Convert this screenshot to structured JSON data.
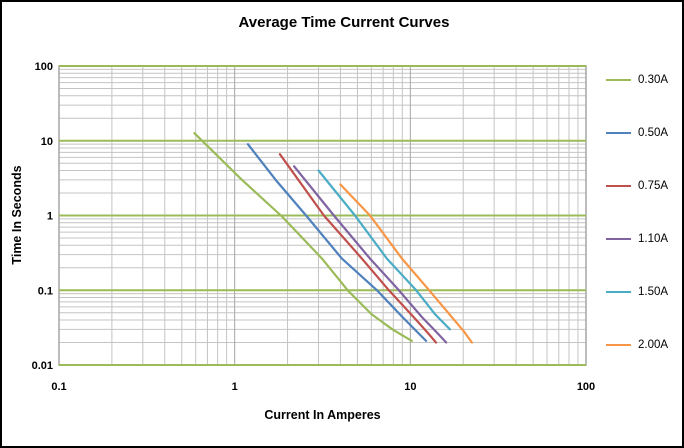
{
  "chart_data": {
    "type": "line",
    "title": "Average Time Current Curves",
    "xlabel": "Current In Amperes",
    "ylabel": "Time In Seconds",
    "xscale": "log",
    "yscale": "log",
    "xlim": [
      0.1,
      100
    ],
    "ylim": [
      0.01,
      100
    ],
    "x_ticks": [
      0.1,
      1,
      10,
      100
    ],
    "x_tick_labels": [
      "0.1",
      "1",
      "10",
      "100"
    ],
    "y_ticks": [
      100,
      10,
      1,
      0.1,
      0.01
    ],
    "y_tick_labels": [
      "100",
      "10",
      "1",
      "0.1",
      "0.01"
    ],
    "grid": {
      "minor": true,
      "minor_color": "#C4C4C4",
      "major_vertical_color": "#A6A6A6",
      "major_horizontal_color": "#9BBB59",
      "frame_color": "#A6A6A6"
    },
    "legend_position": "right",
    "series": [
      {
        "name": "0.30A",
        "color": "#9BBB59",
        "points": [
          [
            0.59,
            12.6
          ],
          [
            1.1,
            3.0
          ],
          [
            1.86,
            0.97
          ],
          [
            3.14,
            0.265
          ],
          [
            4.4,
            0.1
          ],
          [
            6.0,
            0.048
          ],
          [
            7.9,
            0.03
          ],
          [
            10.2,
            0.021
          ]
        ]
      },
      {
        "name": "0.50A",
        "color": "#4F81BD",
        "points": [
          [
            1.19,
            9.0
          ],
          [
            1.74,
            2.86
          ],
          [
            2.55,
            1.0
          ],
          [
            4.08,
            0.265
          ],
          [
            6.46,
            0.1
          ],
          [
            9.0,
            0.044
          ],
          [
            10.9,
            0.028
          ],
          [
            12.3,
            0.021
          ]
        ]
      },
      {
        "name": "0.75A",
        "color": "#C0504D",
        "points": [
          [
            1.81,
            6.6
          ],
          [
            3.22,
            1.0
          ],
          [
            5.3,
            0.265
          ],
          [
            7.55,
            0.1
          ],
          [
            10.5,
            0.043
          ],
          [
            12.4,
            0.028
          ],
          [
            14.0,
            0.02
          ]
        ]
      },
      {
        "name": "1.10A",
        "color": "#8064A2",
        "points": [
          [
            2.18,
            4.55
          ],
          [
            3.67,
            1.0
          ],
          [
            5.89,
            0.265
          ],
          [
            8.61,
            0.1
          ],
          [
            11.6,
            0.044
          ],
          [
            14.0,
            0.028
          ],
          [
            16.0,
            0.02
          ]
        ]
      },
      {
        "name": "1.50A",
        "color": "#4BACC6",
        "points": [
          [
            3.0,
            4.0
          ],
          [
            4.84,
            1.0
          ],
          [
            7.36,
            0.265
          ],
          [
            10.8,
            0.1
          ],
          [
            13.8,
            0.048
          ],
          [
            16.8,
            0.03
          ]
        ]
      },
      {
        "name": "2.00A",
        "color": "#F79646",
        "points": [
          [
            4.0,
            2.6
          ],
          [
            5.89,
            1.0
          ],
          [
            8.96,
            0.265
          ],
          [
            12.8,
            0.1
          ],
          [
            17.2,
            0.044
          ],
          [
            20.2,
            0.028
          ],
          [
            22.4,
            0.02
          ]
        ]
      }
    ]
  },
  "colors": {
    "background": "#FFFFFF",
    "outer_border": "#000000",
    "text": "#000000"
  }
}
